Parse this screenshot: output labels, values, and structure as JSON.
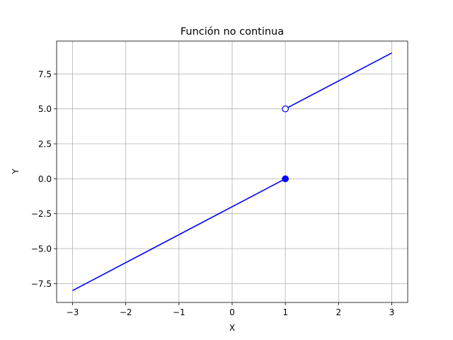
{
  "chart_data": {
    "type": "line",
    "title": "Función no continua",
    "xlabel": "X",
    "ylabel": "Y",
    "xlim": [
      -3.3,
      3.3
    ],
    "ylim": [
      -8.85,
      9.85
    ],
    "grid": true,
    "x_ticks": [
      -3,
      -2,
      -1,
      0,
      1,
      2,
      3
    ],
    "x_tick_labels": [
      "−3",
      "−2",
      "−1",
      "0",
      "1",
      "2",
      "3"
    ],
    "y_ticks": [
      -7.5,
      -5.0,
      -2.5,
      0.0,
      2.5,
      5.0,
      7.5
    ],
    "y_tick_labels": [
      "−7.5",
      "−5.0",
      "−2.5",
      "0.0",
      "2.5",
      "5.0",
      "7.5"
    ],
    "line_color": "#0000ff",
    "grid_color": "#b0b0b0",
    "series": [
      {
        "x": [
          -3,
          1
        ],
        "y": [
          -8,
          0
        ]
      },
      {
        "x": [
          1,
          3
        ],
        "y": [
          5,
          9
        ]
      }
    ],
    "markers": [
      {
        "x": 1,
        "y": 0,
        "style": "filled"
      },
      {
        "x": 1,
        "y": 5,
        "style": "open"
      }
    ]
  }
}
